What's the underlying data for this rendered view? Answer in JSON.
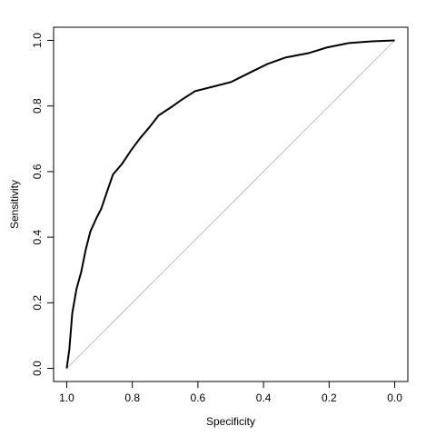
{
  "chart_data": {
    "type": "line",
    "x_label": "Specificity",
    "y_label": "Sensitivity",
    "x": [
      1.0,
      0.992,
      0.983,
      0.97,
      0.956,
      0.942,
      0.928,
      0.909,
      0.895,
      0.878,
      0.859,
      0.831,
      0.803,
      0.776,
      0.748,
      0.72,
      0.679,
      0.651,
      0.609,
      0.554,
      0.499,
      0.443,
      0.388,
      0.332,
      0.263,
      0.208,
      0.139,
      0.069,
      0.0
    ],
    "values": [
      0.0,
      0.058,
      0.169,
      0.243,
      0.293,
      0.362,
      0.417,
      0.459,
      0.486,
      0.536,
      0.591,
      0.624,
      0.666,
      0.702,
      0.735,
      0.771,
      0.798,
      0.818,
      0.845,
      0.859,
      0.873,
      0.901,
      0.928,
      0.948,
      0.961,
      0.978,
      0.992,
      0.997,
      1.0
    ],
    "color": "#000000",
    "diagonal": {
      "x": [
        1,
        0
      ],
      "y": [
        0,
        1
      ],
      "color": "#bebebe"
    },
    "xlim": [
      1.04,
      -0.04
    ],
    "ylim": [
      -0.04,
      1.04
    ],
    "xticks": [
      {
        "value": 1,
        "label": "1.0"
      },
      0.8,
      0.6,
      0.4,
      0.2,
      {
        "value": 0,
        "label": "0.0"
      }
    ],
    "yticks": [
      {
        "value": 0,
        "label": "0.0"
      },
      0.2,
      0.4,
      0.6,
      0.8,
      {
        "value": 1,
        "label": "1.0"
      }
    ],
    "grid": false
  }
}
